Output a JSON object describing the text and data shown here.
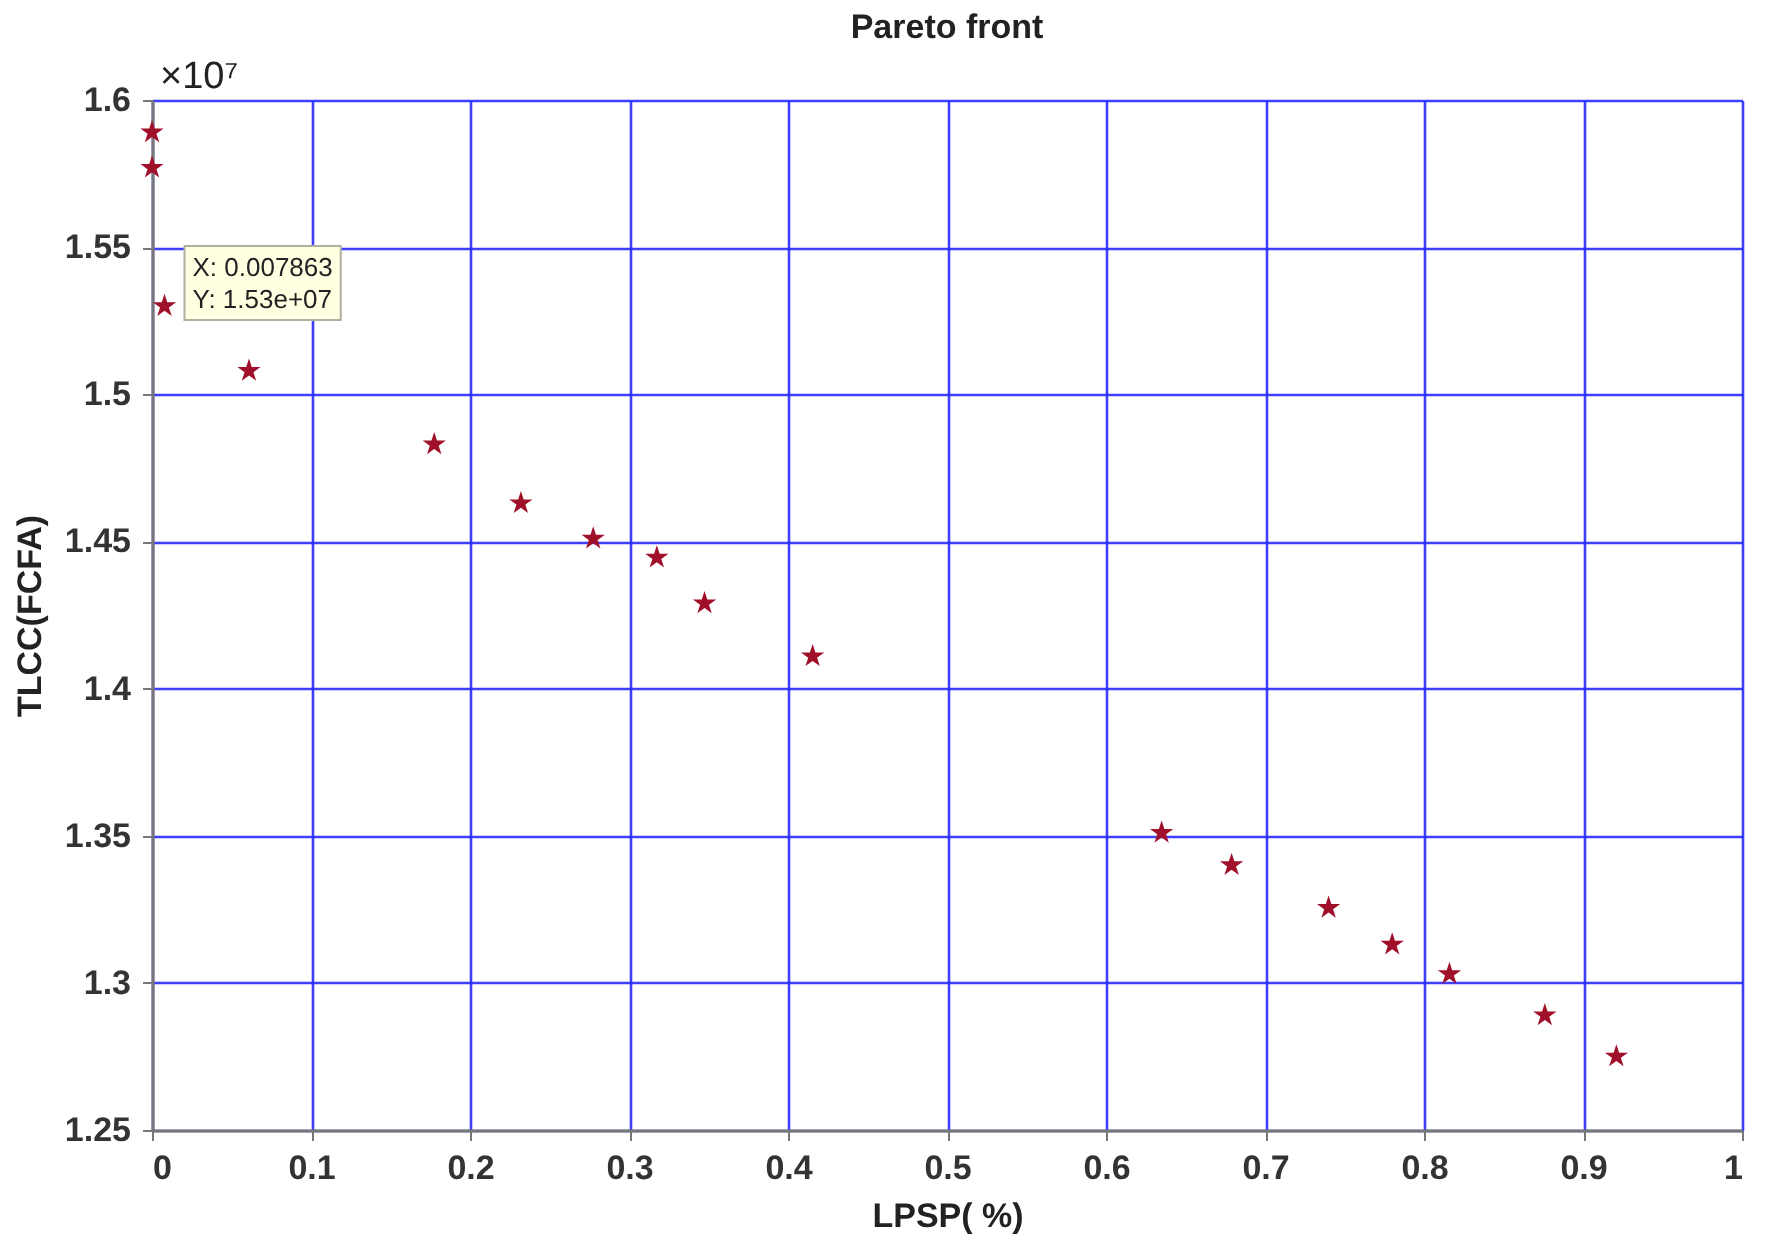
{
  "chart_data": {
    "type": "scatter",
    "title": "Pareto front",
    "xlabel": "LPSP( %)",
    "ylabel": "TLCC(FCFA)",
    "x": [
      0,
      0,
      0.007863,
      0.061,
      0.1775,
      0.232,
      0.2775,
      0.3175,
      0.3475,
      0.4155,
      0.635,
      0.679,
      0.74,
      0.78,
      0.816,
      0.876,
      0.921
    ],
    "series": [
      {
        "color": "#a0102a",
        "values": [
          1.589,
          1.577,
          1.53,
          1.508,
          1.483,
          1.463,
          1.451,
          1.4445,
          1.429,
          1.411,
          1.351,
          1.34,
          1.3255,
          1.313,
          1.303,
          1.289,
          1.275
        ]
      }
    ],
    "xlim": [
      0,
      1
    ],
    "xticks": [
      0,
      0.1,
      0.2,
      0.3,
      0.4,
      0.5,
      0.6,
      0.7,
      0.8,
      0.9,
      1
    ],
    "ylim": [
      1.25,
      1.6
    ],
    "yticks": [
      1.25,
      1.3,
      1.35,
      1.4,
      1.45,
      1.5,
      1.55,
      1.6
    ],
    "grid": true,
    "marker": "star",
    "annotations": [
      "×10⁷",
      {
        "text": "X: 0.007863\nY: 1.53e+07",
        "x": 0.007863,
        "y": 1.53
      }
    ]
  }
}
